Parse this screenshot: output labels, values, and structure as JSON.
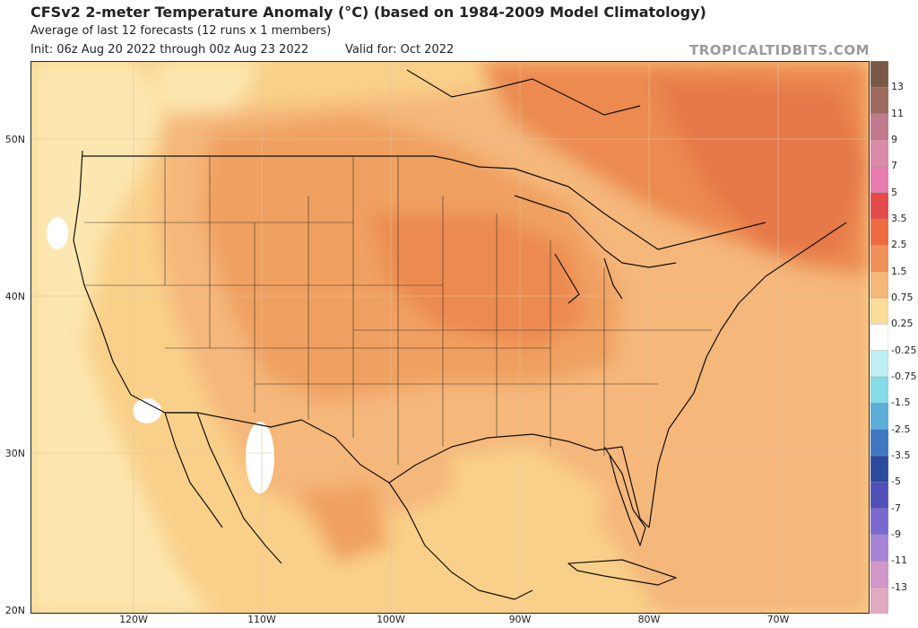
{
  "header": {
    "title": "CFSv2 2-meter Temperature Anomaly (°C) (based on 1984-2009 Model Climatology)",
    "subtitle": "Average of last 12 forecasts (12 runs x 1 members)",
    "init": "Init: 06z Aug 20 2022 through 00z Aug 23 2022",
    "valid": "Valid for: Oct 2022",
    "brand": "TROPICALTIDBITS.COM"
  },
  "axes": {
    "lat_labels": [
      "50N",
      "40N",
      "30N",
      "20N"
    ],
    "lon_labels": [
      "120W",
      "110W",
      "100W",
      "90W",
      "80W",
      "70W"
    ]
  },
  "colorbar": {
    "labels": [
      "13",
      "11",
      "9",
      "7",
      "5",
      "3.5",
      "2.5",
      "1.5",
      "0.75",
      "0.25",
      "-0.25",
      "-0.75",
      "-1.5",
      "-2.5",
      "-3.5",
      "-5",
      "-7",
      "-9",
      "-11",
      "-13"
    ],
    "colors": [
      "#7a5a46",
      "#9c6a5e",
      "#c07a8e",
      "#dc8aaa",
      "#e87cae",
      "#e44a4a",
      "#ee6a40",
      "#f2905a",
      "#f5b77a",
      "#fbdc98",
      "#ffffff",
      "#bdf0f2",
      "#86dce9",
      "#5aaed8",
      "#3e78c2",
      "#2a4a9e",
      "#5050b8",
      "#7a6ad0",
      "#a884d6",
      "#d098c8",
      "#e0aac0"
    ]
  },
  "colors": {
    "pale": "#fce7b0",
    "light": "#f9d089",
    "mid": "#f5b77a",
    "warm": "#f0a060",
    "hot": "#ec8a50",
    "hotter": "#e67848"
  }
}
